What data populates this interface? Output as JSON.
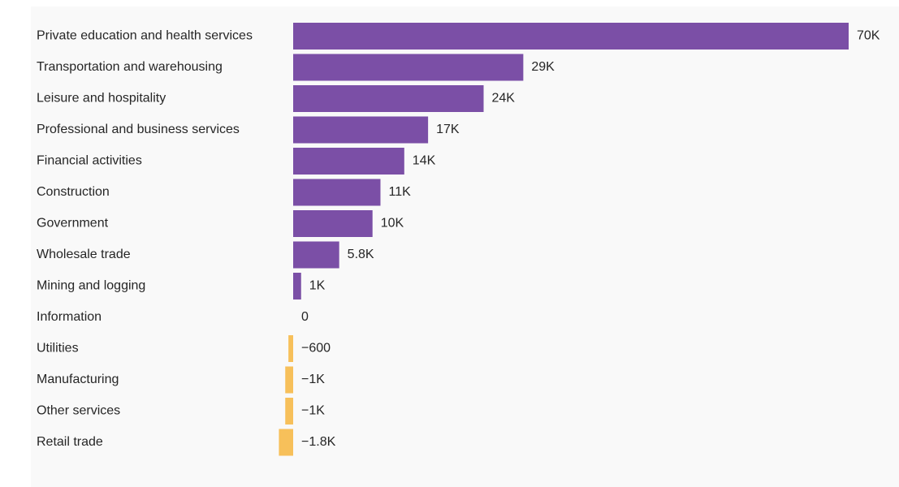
{
  "chart_data": {
    "type": "bar",
    "orientation": "horizontal",
    "categories": [
      "Private education and health services",
      "Transportation and warehousing",
      "Leisure and hospitality",
      "Professional and business services",
      "Financial activities",
      "Construction",
      "Government",
      "Wholesale trade",
      "Mining and logging",
      "Information",
      "Utilities",
      "Manufacturing",
      "Other services",
      "Retail trade"
    ],
    "values": [
      70000,
      29000,
      24000,
      17000,
      14000,
      11000,
      10000,
      5800,
      1000,
      0,
      -600,
      -1000,
      -1000,
      -1800
    ],
    "value_labels": [
      "70K",
      "29K",
      "24K",
      "17K",
      "14K",
      "11K",
      "10K",
      "5.8K",
      "1K",
      "0",
      "−600",
      "−1K",
      "−1K",
      "−1.8K"
    ],
    "colors": {
      "positive": "#7b4fa6",
      "negative": "#f7c05a"
    },
    "grid": false,
    "legend": "none"
  }
}
